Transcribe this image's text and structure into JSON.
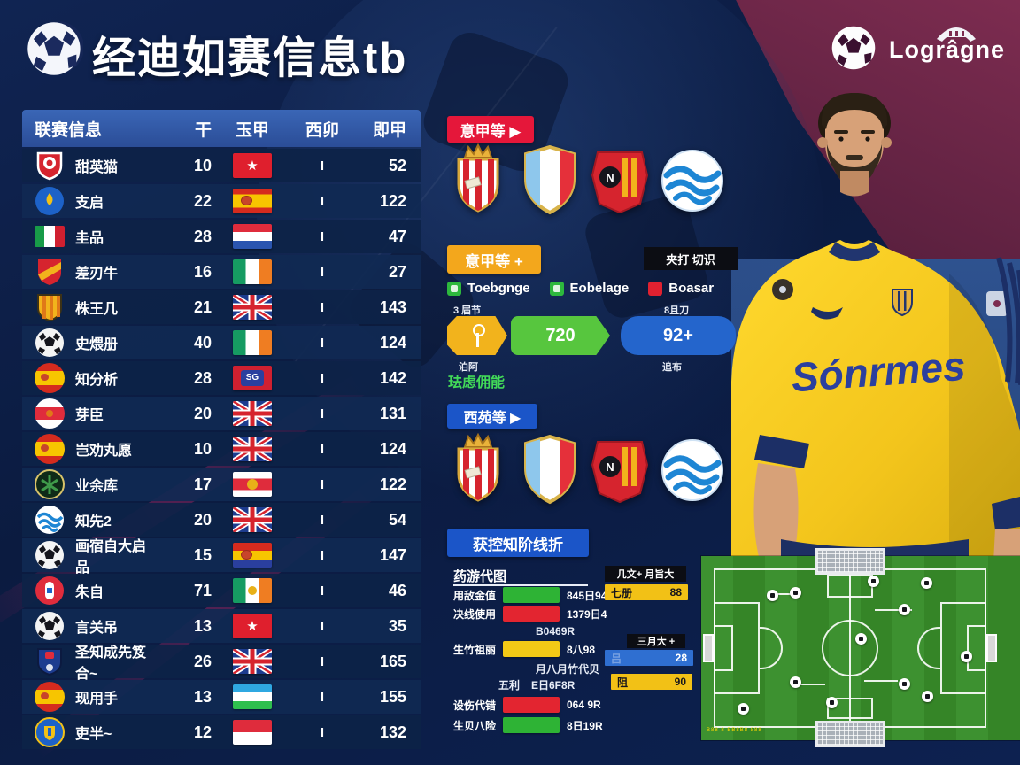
{
  "header": {
    "title": "经迪如赛信息tb"
  },
  "brand": {
    "name": "Logrâgne"
  },
  "table": {
    "columns": [
      "联赛信息",
      "干",
      "玉甲",
      "西卯",
      "即甲"
    ],
    "mid_marker": "I",
    "rows": [
      {
        "name": "甜英猫",
        "icon": "shield-red",
        "v1": "10",
        "flag": "vn",
        "mid": "I",
        "v2": "52"
      },
      {
        "name": "支启",
        "icon": "circle-blue-drop",
        "v1": "22",
        "flag": "es",
        "mid": "I",
        "v2": "122"
      },
      {
        "name": "圭品",
        "icon": "flag-mexico",
        "v1": "28",
        "flag": "py",
        "mid": "I",
        "v2": "47"
      },
      {
        "name": "差刃牛",
        "icon": "shield-diag",
        "v1": "16",
        "flag": "ie",
        "mid": "I",
        "v2": "27"
      },
      {
        "name": "株王几",
        "icon": "shield-stripes",
        "v1": "21",
        "flag": "uk",
        "mid": "I",
        "v2": "143"
      },
      {
        "name": "史煨册",
        "icon": "ball",
        "v1": "40",
        "flag": "ie",
        "mid": "I",
        "v2": "124"
      },
      {
        "name": "知分析",
        "icon": "circle-spain",
        "v1": "28",
        "flag": "sg",
        "mid": "I",
        "v2": "142"
      },
      {
        "name": "芽臣",
        "icon": "circle-white-red",
        "v1": "20",
        "flag": "uk",
        "mid": "I",
        "v2": "131"
      },
      {
        "name": "岂劝丸愿",
        "icon": "circle-spain",
        "v1": "10",
        "flag": "uk",
        "mid": "I",
        "v2": "124"
      },
      {
        "name": "业余库",
        "icon": "circle-green-crest",
        "v1": "17",
        "flag": "wr",
        "mid": "I",
        "v2": "122"
      },
      {
        "name": "知先2",
        "icon": "circle-wave",
        "v1": "20",
        "flag": "uk",
        "mid": "I",
        "v2": "54"
      },
      {
        "name": "画宿自大启品",
        "icon": "ball",
        "v1": "15",
        "flag": "esb",
        "mid": "I",
        "v2": "147"
      },
      {
        "name": "朱自",
        "icon": "circle-red-pill",
        "v1": "71",
        "flag": "ieg",
        "mid": "I",
        "v2": "46"
      },
      {
        "name": "言关吊",
        "icon": "ball",
        "v1": "13",
        "flag": "vn",
        "mid": "I",
        "v2": "35"
      },
      {
        "name": "圣知成先笈合~",
        "icon": "shield-blue",
        "v1": "26",
        "flag": "uk",
        "mid": "I",
        "v2": "165"
      },
      {
        "name": "现用手",
        "icon": "circle-spain",
        "v1": "13",
        "flag": "uz",
        "mid": "I",
        "v2": "155"
      },
      {
        "name": "吏半~",
        "icon": "circle-crest-blue",
        "v1": "12",
        "flag": "id",
        "mid": "I",
        "v2": "132"
      }
    ]
  },
  "middle": {
    "red_button": "意甲等 ▶",
    "yellow_button": "意甲等 +",
    "blue_button": "西苑等 ▶",
    "black_tag": "夹打 切识",
    "legend": [
      {
        "label": "Toebgnge",
        "color": "#2db83d"
      },
      {
        "label": "Eobelage",
        "color": "#2db83d"
      },
      {
        "label": "Boasar",
        "color": "#e02130"
      }
    ],
    "chevrons": {
      "top_left_label": "3 届节",
      "top_right_label": "8且刀",
      "green_value": "720",
      "blue_value": "92+",
      "bottom_left_label": "泊阿",
      "bottom_right_label": "追布",
      "green_note": "珐虑佣能"
    },
    "stats": {
      "header": "获控知阶线折",
      "subtitle": "药游代图",
      "rows": [
        {
          "label": "用敌金值",
          "color": "#2eb335",
          "value": "845日94"
        },
        {
          "label": "决线使用",
          "color": "#e32530",
          "value": "1379日4"
        },
        {
          "label": "生竹祖丽",
          "color": "#f2c916",
          "value": "8八98"
        },
        {
          "label": "设伤代错",
          "color": "#e32530",
          "value": "064 9R"
        },
        {
          "label": "生贝八险",
          "color": "#2eb335",
          "value": "8日19R"
        }
      ],
      "floaters": {
        "f1": "B0469R",
        "f2": "月八月竹代贝",
        "f3_small": "五利",
        "f3": "E日6F8R"
      }
    },
    "mini_boxes": {
      "header1": "几文+ 月旨大",
      "box1_label": "七册",
      "box1_value": "88",
      "header2": "三月大 +",
      "box2_value": "28",
      "box3_label": "阻",
      "box3_value": "90"
    }
  },
  "player": {
    "jersey_text": "Sónrmes"
  },
  "pitch": {
    "note": "B88 8 BB8B8 888",
    "balls": [
      [
        188,
        22
      ],
      [
        248,
        24
      ],
      [
        100,
        35
      ],
      [
        74,
        38
      ],
      [
        223,
        54
      ],
      [
        174,
        87
      ],
      [
        293,
        107
      ],
      [
        100,
        136
      ],
      [
        223,
        138
      ],
      [
        249,
        152
      ],
      [
        141,
        159
      ],
      [
        41,
        166
      ]
    ]
  },
  "colors": {
    "accent_red": "#e5173a",
    "accent_yellow": "#f3a71c",
    "accent_blue": "#1b55c8",
    "bar_green": "#2eb335",
    "bar_red": "#e32530",
    "bar_yellow": "#f2c916",
    "box_blue": "#2f6fd1",
    "box_yellow": "#f2c116"
  }
}
